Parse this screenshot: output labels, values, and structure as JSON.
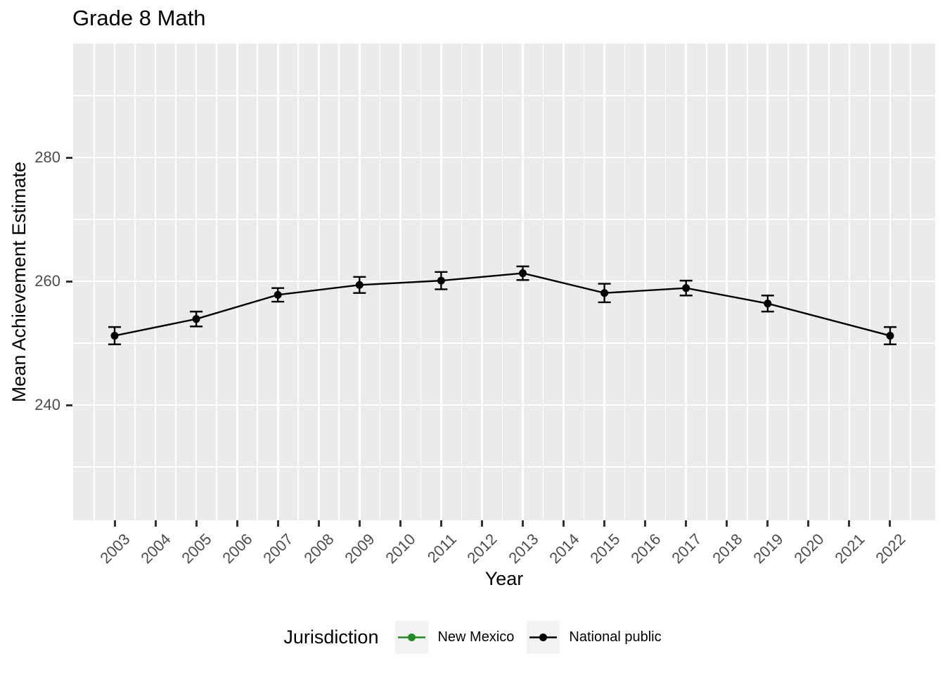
{
  "chart_data": {
    "type": "line",
    "title": "Grade 8 Math",
    "xlabel": "Year",
    "ylabel": "Mean Achievement Estimate",
    "x_ticks": [
      2003,
      2004,
      2005,
      2006,
      2007,
      2008,
      2009,
      2010,
      2011,
      2012,
      2013,
      2014,
      2015,
      2016,
      2017,
      2018,
      2019,
      2020,
      2021,
      2022
    ],
    "y_axis": {
      "major_ticks": [
        240,
        260,
        280
      ],
      "minor_gridlines": [
        230,
        250,
        270,
        290
      ],
      "range_approx": [
        221,
        298
      ]
    },
    "legend": {
      "title": "Jurisdiction",
      "position": "bottom",
      "entries": [
        {
          "label": "New Mexico",
          "color": "#228B22"
        },
        {
          "label": "National public",
          "color": "#000000"
        }
      ]
    },
    "series": [
      {
        "name": "New Mexico",
        "color": "#228B22",
        "visible_in_plot": false,
        "x": [],
        "y": [],
        "moe": []
      },
      {
        "name": "National public",
        "color": "#000000",
        "visible_in_plot": true,
        "x": [
          2003,
          2005,
          2007,
          2009,
          2011,
          2013,
          2015,
          2017,
          2019,
          2022
        ],
        "y": [
          251.2,
          253.9,
          257.8,
          259.4,
          260.1,
          261.3,
          258.1,
          258.9,
          256.4,
          251.2
        ],
        "moe": [
          1.4,
          1.2,
          1.1,
          1.3,
          1.4,
          1.1,
          1.5,
          1.2,
          1.3,
          1.4
        ]
      }
    ],
    "style": {
      "panel_bg": "#ebebeb",
      "gridline_color": "#ffffff",
      "tick_label_color": "#4d4d4d",
      "tick_mark_color": "#333333",
      "text_color": "#000000",
      "legend_key_bg": "#f2f2f2"
    }
  }
}
